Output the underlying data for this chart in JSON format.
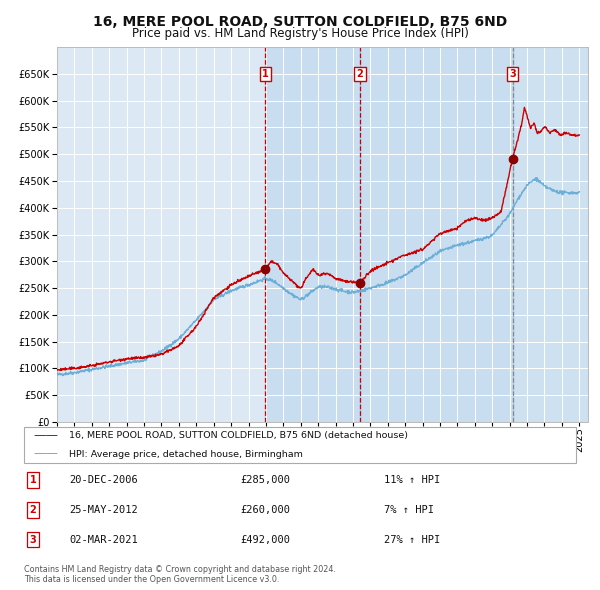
{
  "title": "16, MERE POOL ROAD, SUTTON COLDFIELD, B75 6ND",
  "subtitle": "Price paid vs. HM Land Registry's House Price Index (HPI)",
  "title_fontsize": 10,
  "subtitle_fontsize": 8.5,
  "background_color": "#ffffff",
  "plot_bg_color": "#dce9f5",
  "grid_color": "#ffffff",
  "hpi_line_color": "#6baed6",
  "price_line_color": "#cc0000",
  "sale_marker_color": "#8B0000",
  "dashed_color": "#cc0000",
  "dashed3_color": "#888888",
  "ylim": [
    0,
    700000
  ],
  "yticks": [
    0,
    50000,
    100000,
    150000,
    200000,
    250000,
    300000,
    350000,
    400000,
    450000,
    500000,
    550000,
    600000,
    650000
  ],
  "legend_items": [
    {
      "label": "16, MERE POOL ROAD, SUTTON COLDFIELD, B75 6ND (detached house)",
      "color": "#cc0000"
    },
    {
      "label": "HPI: Average price, detached house, Birmingham",
      "color": "#6baed6"
    }
  ],
  "sales": [
    {
      "num": 1,
      "date": "20-DEC-2006",
      "price": "£285,000",
      "pct": "11%",
      "dir": "↑"
    },
    {
      "num": 2,
      "date": "25-MAY-2012",
      "price": "£260,000",
      "pct": "7%",
      "dir": "↑"
    },
    {
      "num": 3,
      "date": "02-MAR-2021",
      "price": "£492,000",
      "pct": "27%",
      "dir": "↑"
    }
  ],
  "sale_years": [
    2006.97,
    2012.4,
    2021.17
  ],
  "sale_prices": [
    285000,
    260000,
    492000
  ],
  "footnote1": "Contains HM Land Registry data © Crown copyright and database right 2024.",
  "footnote2": "This data is licensed under the Open Government Licence v3.0.",
  "xmin": 1995,
  "xmax": 2025.5,
  "xtick_years": [
    1995,
    1996,
    1997,
    1998,
    1999,
    2000,
    2001,
    2002,
    2003,
    2004,
    2005,
    2006,
    2007,
    2008,
    2009,
    2010,
    2011,
    2012,
    2013,
    2014,
    2015,
    2016,
    2017,
    2018,
    2019,
    2020,
    2021,
    2022,
    2023,
    2024,
    2025
  ]
}
